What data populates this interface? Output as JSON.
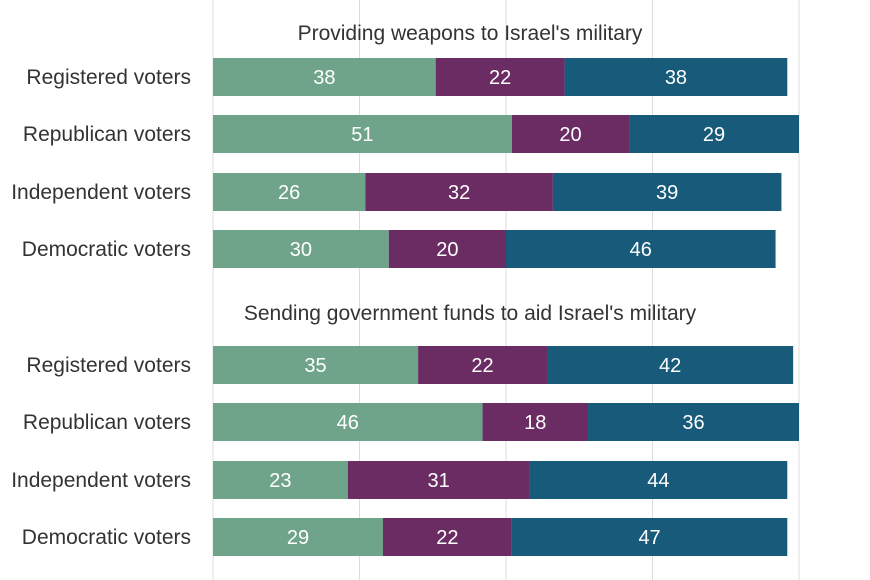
{
  "chart_data": {
    "type": "bar",
    "orientation": "horizontal",
    "stacked": true,
    "xlim": [
      0,
      100
    ],
    "grid": true,
    "colors": [
      "#6fa48a",
      "#6a2c62",
      "#175a7a"
    ],
    "groups": [
      {
        "title": "Providing weapons to Israel's military",
        "categories": [
          "Registered voters",
          "Republican voters",
          "Independent voters",
          "Democratic voters"
        ],
        "series": [
          {
            "values": [
              38,
              51,
              26,
              30
            ]
          },
          {
            "values": [
              22,
              20,
              32,
              20
            ]
          },
          {
            "values": [
              38,
              29,
              39,
              46
            ]
          }
        ]
      },
      {
        "title": "Sending government funds to aid Israel's military",
        "categories": [
          "Registered voters",
          "Republican voters",
          "Independent voters",
          "Democratic voters"
        ],
        "series": [
          {
            "values": [
              35,
              46,
              23,
              29
            ]
          },
          {
            "values": [
              22,
              18,
              31,
              22
            ]
          },
          {
            "values": [
              42,
              36,
              44,
              47
            ]
          }
        ]
      }
    ]
  }
}
